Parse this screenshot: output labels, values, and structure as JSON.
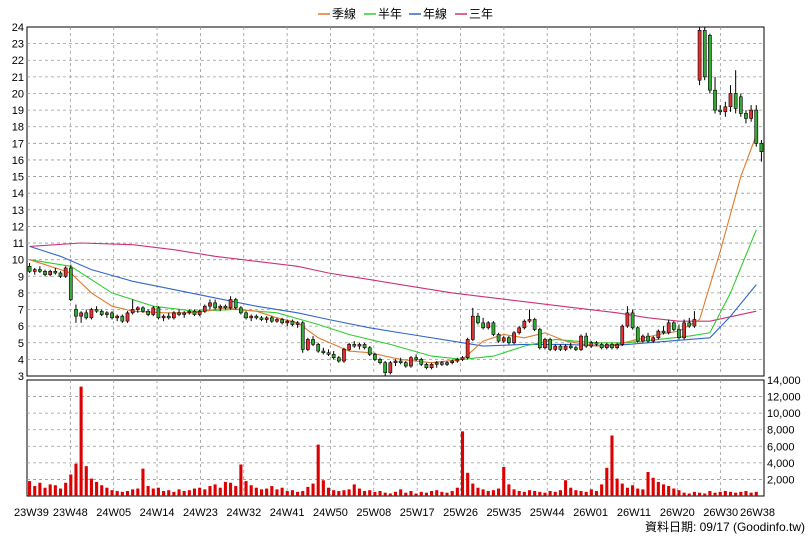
{
  "chart_data": {
    "type": "candlestick",
    "legend": [
      {
        "name": "季線",
        "color": "#e07b2f"
      },
      {
        "name": "半年",
        "color": "#33cc33"
      },
      {
        "name": "年線",
        "color": "#3366cc"
      },
      {
        "name": "三年",
        "color": "#cc3377"
      }
    ],
    "price_axis": {
      "min": 3,
      "max": 24,
      "step": 1
    },
    "volume_axis": {
      "min": 0,
      "max": 14000,
      "ticks": [
        2000,
        4000,
        6000,
        8000,
        10000,
        12000,
        14000
      ]
    },
    "x_labels": [
      "23W39",
      "23W48",
      "24W05",
      "24W14",
      "24W23",
      "24W32",
      "24W41",
      "24W50",
      "25W08",
      "25W17",
      "25W26",
      "25W35",
      "25W44",
      "26W01",
      "26W11",
      "26W20",
      "26W30",
      "26W38"
    ],
    "source_text": "資料日期: 09/17  (Goodinfo.tw)",
    "colors": {
      "up": "#e03030",
      "down": "#33aa33",
      "volume": "#dd0000",
      "grid": "#999999"
    },
    "candles": [
      {
        "o": 9.6,
        "h": 9.8,
        "l": 9.2,
        "c": 9.3
      },
      {
        "o": 9.3,
        "h": 9.5,
        "l": 9.1,
        "c": 9.4
      },
      {
        "o": 9.4,
        "h": 9.6,
        "l": 9.2,
        "c": 9.3
      },
      {
        "o": 9.3,
        "h": 9.4,
        "l": 9.0,
        "c": 9.1
      },
      {
        "o": 9.1,
        "h": 9.4,
        "l": 9.0,
        "c": 9.3
      },
      {
        "o": 9.3,
        "h": 9.5,
        "l": 9.1,
        "c": 9.2
      },
      {
        "o": 9.2,
        "h": 9.3,
        "l": 8.9,
        "c": 9.0
      },
      {
        "o": 9.0,
        "h": 9.6,
        "l": 8.9,
        "c": 9.5
      },
      {
        "o": 9.5,
        "h": 9.7,
        "l": 7.5,
        "c": 7.6
      },
      {
        "o": 7.0,
        "h": 7.3,
        "l": 6.2,
        "c": 6.6
      },
      {
        "o": 6.6,
        "h": 6.9,
        "l": 6.2,
        "c": 6.8
      },
      {
        "o": 6.8,
        "h": 7.0,
        "l": 6.4,
        "c": 6.5
      },
      {
        "o": 6.5,
        "h": 7.1,
        "l": 6.4,
        "c": 7.0
      },
      {
        "o": 7.0,
        "h": 7.2,
        "l": 6.8,
        "c": 6.9
      },
      {
        "o": 6.9,
        "h": 7.0,
        "l": 6.6,
        "c": 6.7
      },
      {
        "o": 6.7,
        "h": 6.9,
        "l": 6.5,
        "c": 6.8
      },
      {
        "o": 6.8,
        "h": 6.9,
        "l": 6.4,
        "c": 6.5
      },
      {
        "o": 6.5,
        "h": 6.7,
        "l": 6.3,
        "c": 6.6
      },
      {
        "o": 6.6,
        "h": 6.7,
        "l": 6.2,
        "c": 6.3
      },
      {
        "o": 6.3,
        "h": 6.9,
        "l": 6.2,
        "c": 6.8
      },
      {
        "o": 6.8,
        "h": 7.6,
        "l": 6.7,
        "c": 7.0
      },
      {
        "o": 7.0,
        "h": 7.2,
        "l": 6.8,
        "c": 7.1
      },
      {
        "o": 7.1,
        "h": 7.2,
        "l": 6.8,
        "c": 6.9
      },
      {
        "o": 6.9,
        "h": 7.0,
        "l": 6.6,
        "c": 6.7
      },
      {
        "o": 6.7,
        "h": 7.2,
        "l": 6.6,
        "c": 7.1
      },
      {
        "o": 7.1,
        "h": 7.2,
        "l": 6.4,
        "c": 6.5
      },
      {
        "o": 6.5,
        "h": 6.7,
        "l": 6.3,
        "c": 6.6
      },
      {
        "o": 6.6,
        "h": 6.8,
        "l": 6.4,
        "c": 6.5
      },
      {
        "o": 6.5,
        "h": 6.9,
        "l": 6.4,
        "c": 6.8
      },
      {
        "o": 6.8,
        "h": 7.0,
        "l": 6.6,
        "c": 6.7
      },
      {
        "o": 6.7,
        "h": 6.9,
        "l": 6.5,
        "c": 6.8
      },
      {
        "o": 6.8,
        "h": 7.0,
        "l": 6.7,
        "c": 6.9
      },
      {
        "o": 6.9,
        "h": 7.0,
        "l": 6.6,
        "c": 6.7
      },
      {
        "o": 6.7,
        "h": 7.0,
        "l": 6.6,
        "c": 6.9
      },
      {
        "o": 6.9,
        "h": 7.3,
        "l": 6.8,
        "c": 7.2
      },
      {
        "o": 7.2,
        "h": 7.6,
        "l": 7.0,
        "c": 7.4
      },
      {
        "o": 7.4,
        "h": 7.6,
        "l": 7.0,
        "c": 7.1
      },
      {
        "o": 7.1,
        "h": 7.3,
        "l": 6.9,
        "c": 7.2
      },
      {
        "o": 7.2,
        "h": 7.3,
        "l": 7.0,
        "c": 7.1
      },
      {
        "o": 7.1,
        "h": 7.8,
        "l": 7.0,
        "c": 7.6
      },
      {
        "o": 7.6,
        "h": 7.7,
        "l": 7.0,
        "c": 7.1
      },
      {
        "o": 7.1,
        "h": 7.2,
        "l": 6.7,
        "c": 6.8
      },
      {
        "o": 6.8,
        "h": 6.9,
        "l": 6.4,
        "c": 6.5
      },
      {
        "o": 6.5,
        "h": 6.7,
        "l": 6.3,
        "c": 6.6
      },
      {
        "o": 6.6,
        "h": 6.7,
        "l": 6.4,
        "c": 6.5
      },
      {
        "o": 6.5,
        "h": 6.6,
        "l": 6.3,
        "c": 6.4
      },
      {
        "o": 6.4,
        "h": 6.6,
        "l": 6.2,
        "c": 6.5
      },
      {
        "o": 6.5,
        "h": 6.6,
        "l": 6.2,
        "c": 6.3
      },
      {
        "o": 6.3,
        "h": 6.5,
        "l": 6.2,
        "c": 6.4
      },
      {
        "o": 6.4,
        "h": 6.5,
        "l": 6.1,
        "c": 6.2
      },
      {
        "o": 6.2,
        "h": 6.4,
        "l": 6.0,
        "c": 6.3
      },
      {
        "o": 6.3,
        "h": 6.4,
        "l": 6.0,
        "c": 6.1
      },
      {
        "o": 6.1,
        "h": 6.3,
        "l": 5.9,
        "c": 6.2
      },
      {
        "o": 6.2,
        "h": 6.3,
        "l": 4.4,
        "c": 4.6
      },
      {
        "o": 4.6,
        "h": 5.3,
        "l": 4.5,
        "c": 5.2
      },
      {
        "o": 5.2,
        "h": 5.4,
        "l": 4.8,
        "c": 4.9
      },
      {
        "o": 4.9,
        "h": 5.0,
        "l": 4.4,
        "c": 4.5
      },
      {
        "o": 4.5,
        "h": 4.7,
        "l": 4.3,
        "c": 4.4
      },
      {
        "o": 4.4,
        "h": 4.6,
        "l": 4.2,
        "c": 4.3
      },
      {
        "o": 4.3,
        "h": 4.5,
        "l": 4.0,
        "c": 4.1
      },
      {
        "o": 4.1,
        "h": 4.2,
        "l": 3.8,
        "c": 3.9
      },
      {
        "o": 3.9,
        "h": 4.7,
        "l": 3.8,
        "c": 4.6
      },
      {
        "o": 4.6,
        "h": 5.0,
        "l": 4.5,
        "c": 4.9
      },
      {
        "o": 4.9,
        "h": 5.1,
        "l": 4.7,
        "c": 4.8
      },
      {
        "o": 4.8,
        "h": 5.0,
        "l": 4.6,
        "c": 4.9
      },
      {
        "o": 4.9,
        "h": 5.0,
        "l": 4.6,
        "c": 4.7
      },
      {
        "o": 4.7,
        "h": 4.8,
        "l": 4.2,
        "c": 4.3
      },
      {
        "o": 4.3,
        "h": 4.4,
        "l": 3.9,
        "c": 4.0
      },
      {
        "o": 4.0,
        "h": 4.1,
        "l": 3.7,
        "c": 3.8
      },
      {
        "o": 3.8,
        "h": 3.9,
        "l": 3.0,
        "c": 3.2
      },
      {
        "o": 3.2,
        "h": 3.9,
        "l": 3.1,
        "c": 3.8
      },
      {
        "o": 3.8,
        "h": 4.0,
        "l": 3.6,
        "c": 3.9
      },
      {
        "o": 3.9,
        "h": 4.1,
        "l": 3.7,
        "c": 3.8
      },
      {
        "o": 3.8,
        "h": 3.9,
        "l": 3.5,
        "c": 3.6
      },
      {
        "o": 3.6,
        "h": 4.2,
        "l": 3.5,
        "c": 4.1
      },
      {
        "o": 4.1,
        "h": 4.3,
        "l": 3.9,
        "c": 4.0
      },
      {
        "o": 4.0,
        "h": 4.1,
        "l": 3.6,
        "c": 3.7
      },
      {
        "o": 3.7,
        "h": 3.8,
        "l": 3.4,
        "c": 3.5
      },
      {
        "o": 3.5,
        "h": 3.8,
        "l": 3.4,
        "c": 3.7
      },
      {
        "o": 3.7,
        "h": 3.9,
        "l": 3.5,
        "c": 3.8
      },
      {
        "o": 3.8,
        "h": 3.9,
        "l": 3.6,
        "c": 3.7
      },
      {
        "o": 3.7,
        "h": 3.9,
        "l": 3.6,
        "c": 3.8
      },
      {
        "o": 3.8,
        "h": 4.0,
        "l": 3.7,
        "c": 3.9
      },
      {
        "o": 3.9,
        "h": 4.1,
        "l": 3.8,
        "c": 4.0
      },
      {
        "o": 4.0,
        "h": 4.2,
        "l": 3.9,
        "c": 4.1
      },
      {
        "o": 4.1,
        "h": 5.3,
        "l": 4.0,
        "c": 5.2
      },
      {
        "o": 5.2,
        "h": 7.1,
        "l": 5.1,
        "c": 6.6
      },
      {
        "o": 6.6,
        "h": 6.8,
        "l": 6.1,
        "c": 6.2
      },
      {
        "o": 6.2,
        "h": 6.5,
        "l": 5.8,
        "c": 5.9
      },
      {
        "o": 5.9,
        "h": 6.3,
        "l": 5.8,
        "c": 6.2
      },
      {
        "o": 6.2,
        "h": 6.3,
        "l": 5.4,
        "c": 5.5
      },
      {
        "o": 5.5,
        "h": 5.6,
        "l": 5.0,
        "c": 5.1
      },
      {
        "o": 5.1,
        "h": 5.4,
        "l": 5.0,
        "c": 5.3
      },
      {
        "o": 5.3,
        "h": 5.4,
        "l": 4.9,
        "c": 5.0
      },
      {
        "o": 5.0,
        "h": 5.7,
        "l": 4.9,
        "c": 5.6
      },
      {
        "o": 5.6,
        "h": 6.0,
        "l": 5.5,
        "c": 5.9
      },
      {
        "o": 5.9,
        "h": 6.4,
        "l": 5.8,
        "c": 6.3
      },
      {
        "o": 6.3,
        "h": 7.0,
        "l": 6.2,
        "c": 6.4
      },
      {
        "o": 6.4,
        "h": 6.5,
        "l": 5.7,
        "c": 5.8
      },
      {
        "o": 5.8,
        "h": 5.9,
        "l": 4.6,
        "c": 4.7
      },
      {
        "o": 4.7,
        "h": 5.3,
        "l": 4.6,
        "c": 5.2
      },
      {
        "o": 5.2,
        "h": 5.3,
        "l": 4.5,
        "c": 4.6
      },
      {
        "o": 4.6,
        "h": 4.9,
        "l": 4.5,
        "c": 4.8
      },
      {
        "o": 4.8,
        "h": 4.9,
        "l": 4.5,
        "c": 4.6
      },
      {
        "o": 4.6,
        "h": 4.9,
        "l": 4.5,
        "c": 4.8
      },
      {
        "o": 4.8,
        "h": 5.0,
        "l": 4.6,
        "c": 4.7
      },
      {
        "o": 4.7,
        "h": 4.8,
        "l": 4.5,
        "c": 4.6
      },
      {
        "o": 4.6,
        "h": 5.5,
        "l": 4.5,
        "c": 5.4
      },
      {
        "o": 5.4,
        "h": 5.6,
        "l": 4.7,
        "c": 4.8
      },
      {
        "o": 4.8,
        "h": 5.1,
        "l": 4.7,
        "c": 5.0
      },
      {
        "o": 5.0,
        "h": 5.1,
        "l": 4.8,
        "c": 4.9
      },
      {
        "o": 4.9,
        "h": 5.0,
        "l": 4.6,
        "c": 4.7
      },
      {
        "o": 4.7,
        "h": 5.0,
        "l": 4.6,
        "c": 4.9
      },
      {
        "o": 4.9,
        "h": 5.0,
        "l": 4.6,
        "c": 4.7
      },
      {
        "o": 4.7,
        "h": 5.0,
        "l": 4.6,
        "c": 4.9
      },
      {
        "o": 4.9,
        "h": 6.1,
        "l": 4.8,
        "c": 6.0
      },
      {
        "o": 6.0,
        "h": 7.2,
        "l": 5.9,
        "c": 6.8
      },
      {
        "o": 6.8,
        "h": 7.0,
        "l": 5.8,
        "c": 5.9
      },
      {
        "o": 5.9,
        "h": 6.0,
        "l": 5.0,
        "c": 5.1
      },
      {
        "o": 5.1,
        "h": 5.5,
        "l": 5.0,
        "c": 5.4
      },
      {
        "o": 5.4,
        "h": 5.6,
        "l": 5.0,
        "c": 5.1
      },
      {
        "o": 5.1,
        "h": 5.4,
        "l": 5.0,
        "c": 5.3
      },
      {
        "o": 5.3,
        "h": 5.8,
        "l": 5.2,
        "c": 5.7
      },
      {
        "o": 5.7,
        "h": 6.0,
        "l": 5.5,
        "c": 5.6
      },
      {
        "o": 5.6,
        "h": 6.4,
        "l": 5.5,
        "c": 6.2
      },
      {
        "o": 6.2,
        "h": 6.3,
        "l": 5.7,
        "c": 5.8
      },
      {
        "o": 5.8,
        "h": 6.1,
        "l": 5.2,
        "c": 5.3
      },
      {
        "o": 5.3,
        "h": 6.4,
        "l": 5.2,
        "c": 6.2
      },
      {
        "o": 6.2,
        "h": 6.5,
        "l": 5.9,
        "c": 6.0
      },
      {
        "o": 6.0,
        "h": 6.9,
        "l": 5.9,
        "c": 6.4
      },
      {
        "o": 20.8,
        "h": 24.0,
        "l": 20.5,
        "c": 23.8
      },
      {
        "o": 23.8,
        "h": 24.0,
        "l": 20.8,
        "c": 21.0
      },
      {
        "o": 23.5,
        "h": 23.6,
        "l": 20.0,
        "c": 20.2
      },
      {
        "o": 20.2,
        "h": 21.0,
        "l": 18.8,
        "c": 19.0
      },
      {
        "o": 19.0,
        "h": 19.3,
        "l": 18.7,
        "c": 18.9
      },
      {
        "o": 18.9,
        "h": 19.5,
        "l": 18.6,
        "c": 19.2
      },
      {
        "o": 19.2,
        "h": 20.5,
        "l": 18.9,
        "c": 20.0
      },
      {
        "o": 20.0,
        "h": 21.4,
        "l": 18.8,
        "c": 19.1
      },
      {
        "o": 19.8,
        "h": 20.0,
        "l": 18.6,
        "c": 18.8
      },
      {
        "o": 18.8,
        "h": 19.0,
        "l": 18.2,
        "c": 18.5
      },
      {
        "o": 18.5,
        "h": 19.3,
        "l": 18.3,
        "c": 19.0
      },
      {
        "o": 19.0,
        "h": 19.3,
        "l": 16.8,
        "c": 17.0
      },
      {
        "o": 17.0,
        "h": 17.2,
        "l": 15.9,
        "c": 16.5
      }
    ],
    "volume": [
      1800,
      1200,
      1600,
      1000,
      1400,
      1300,
      900,
      1600,
      2600,
      3900,
      13200,
      3600,
      2100,
      1700,
      1300,
      1000,
      700,
      600,
      500,
      600,
      800,
      900,
      3300,
      1200,
      900,
      1000,
      600,
      700,
      500,
      800,
      600,
      700,
      900,
      1000,
      800,
      1200,
      1400,
      1000,
      1700,
      1600,
      1200,
      3800,
      1800,
      1300,
      1000,
      800,
      900,
      1200,
      800,
      1000,
      600,
      700,
      500,
      600,
      1100,
      1500,
      6200,
      1900,
      1000,
      700,
      600,
      700,
      800,
      1400,
      900,
      600,
      700,
      500,
      600,
      400,
      300,
      500,
      800,
      400,
      600,
      300,
      500,
      400,
      600,
      700,
      500,
      400,
      600,
      1000,
      7800,
      2800,
      1500,
      1000,
      800,
      600,
      700,
      900,
      3500,
      1400,
      800,
      600,
      500,
      700,
      600,
      500,
      400,
      600,
      500,
      700,
      1900,
      1000,
      700,
      600,
      500,
      800,
      600,
      1400,
      3400,
      7300,
      2100,
      1500,
      1000,
      1300,
      900,
      800,
      2900,
      2200,
      1700,
      1400,
      1200,
      900,
      700,
      400,
      300,
      500,
      400,
      300,
      600,
      400,
      500,
      600,
      500,
      400,
      500,
      600,
      400,
      500
    ],
    "ma_quarter": [
      [
        0,
        10.0
      ],
      [
        4,
        9.6
      ],
      [
        8,
        9.2
      ],
      [
        12,
        8.0
      ],
      [
        16,
        7.2
      ],
      [
        20,
        6.9
      ],
      [
        26,
        6.8
      ],
      [
        32,
        6.8
      ],
      [
        38,
        7.1
      ],
      [
        44,
        6.9
      ],
      [
        48,
        6.5
      ],
      [
        52,
        6.2
      ],
      [
        56,
        5.3
      ],
      [
        62,
        4.5
      ],
      [
        66,
        4.4
      ],
      [
        72,
        4.0
      ],
      [
        78,
        3.8
      ],
      [
        84,
        4.0
      ],
      [
        88,
        5.1
      ],
      [
        92,
        5.5
      ],
      [
        96,
        5.3
      ],
      [
        100,
        5.6
      ],
      [
        104,
        5.1
      ],
      [
        110,
        4.8
      ],
      [
        114,
        4.9
      ],
      [
        118,
        5.2
      ],
      [
        122,
        5.5
      ],
      [
        126,
        5.7
      ],
      [
        130,
        6.4
      ],
      [
        134,
        10.5
      ],
      [
        138,
        15.0
      ],
      [
        141,
        17.5
      ]
    ],
    "ma_half": [
      [
        0,
        10.0
      ],
      [
        8,
        9.6
      ],
      [
        16,
        8.0
      ],
      [
        24,
        7.2
      ],
      [
        32,
        6.9
      ],
      [
        40,
        7.0
      ],
      [
        48,
        6.8
      ],
      [
        56,
        6.1
      ],
      [
        62,
        5.5
      ],
      [
        70,
        4.9
      ],
      [
        78,
        4.2
      ],
      [
        84,
        4.0
      ],
      [
        90,
        4.2
      ],
      [
        96,
        4.8
      ],
      [
        102,
        5.2
      ],
      [
        110,
        5.0
      ],
      [
        116,
        5.0
      ],
      [
        122,
        5.2
      ],
      [
        128,
        5.4
      ],
      [
        132,
        5.6
      ],
      [
        136,
        8.0
      ],
      [
        141,
        11.8
      ]
    ],
    "ma_year": [
      [
        0,
        10.8
      ],
      [
        6,
        10.2
      ],
      [
        12,
        9.4
      ],
      [
        20,
        8.7
      ],
      [
        28,
        8.2
      ],
      [
        36,
        7.7
      ],
      [
        44,
        7.2
      ],
      [
        52,
        6.8
      ],
      [
        58,
        6.4
      ],
      [
        66,
        5.9
      ],
      [
        74,
        5.5
      ],
      [
        82,
        5.1
      ],
      [
        88,
        4.8
      ],
      [
        96,
        4.9
      ],
      [
        104,
        4.9
      ],
      [
        112,
        4.8
      ],
      [
        120,
        5.0
      ],
      [
        128,
        5.2
      ],
      [
        132,
        5.3
      ],
      [
        136,
        6.6
      ],
      [
        141,
        8.5
      ]
    ],
    "ma_three": [
      [
        0,
        10.8
      ],
      [
        10,
        11.0
      ],
      [
        20,
        10.9
      ],
      [
        28,
        10.6
      ],
      [
        36,
        10.2
      ],
      [
        44,
        9.9
      ],
      [
        52,
        9.6
      ],
      [
        58,
        9.2
      ],
      [
        66,
        8.8
      ],
      [
        74,
        8.4
      ],
      [
        82,
        8.0
      ],
      [
        90,
        7.7
      ],
      [
        98,
        7.4
      ],
      [
        106,
        7.1
      ],
      [
        114,
        6.8
      ],
      [
        120,
        6.5
      ],
      [
        126,
        6.3
      ],
      [
        132,
        6.3
      ],
      [
        141,
        6.9
      ]
    ]
  }
}
